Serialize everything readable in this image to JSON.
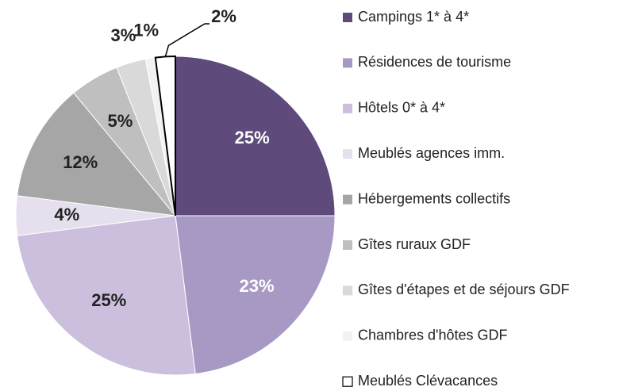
{
  "chart_data": {
    "type": "pie",
    "categories": [
      "Campings 1* à 4*",
      "Résidences de tourisme",
      "Hôtels 0* à 4*",
      "Meublés agences imm.",
      "Hébergements collectifs",
      "Gîtes ruraux GDF",
      "Gîtes d'étapes et de séjours GDF",
      "Chambres d'hôtes GDF",
      "Meublés Clévacances"
    ],
    "values": [
      25,
      23,
      25,
      4,
      12,
      5,
      3,
      1,
      2
    ],
    "value_labels": [
      "25%",
      "23%",
      "25%",
      "4%",
      "12%",
      "5%",
      "3%",
      "1%",
      "2%"
    ],
    "colors": [
      "#5f4a7c",
      "#a899c4",
      "#cbbfdd",
      "#e6e0ee",
      "#a6a6a6",
      "#bfbfbf",
      "#d9d9d9",
      "#f2f2f2",
      "#ffffff"
    ],
    "legend": "right"
  }
}
